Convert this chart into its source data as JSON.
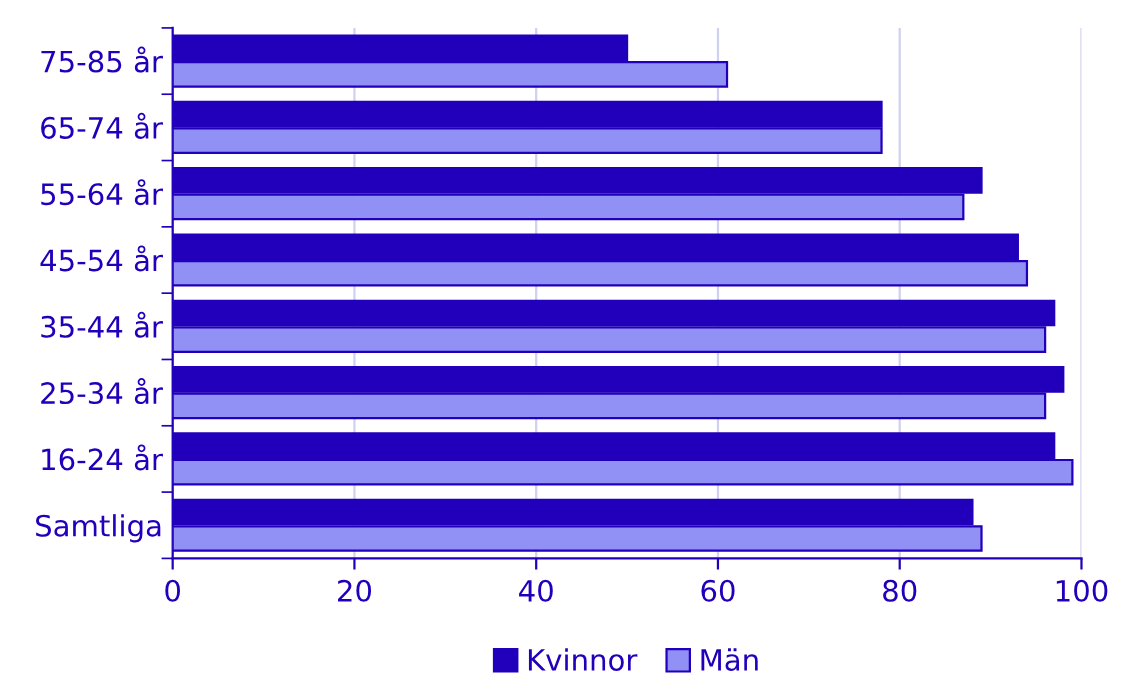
{
  "chart_data": {
    "type": "bar",
    "orientation": "horizontal",
    "categories": [
      "75-85 år",
      "65-74 år",
      "55-64 år",
      "45-54 år",
      "35-44 år",
      "25-34 år",
      "16-24 år",
      "Samtliga"
    ],
    "series": [
      {
        "name": "Kvinnor",
        "color": "#2200bb",
        "values": [
          50,
          78,
          89,
          93,
          97,
          98,
          97,
          88
        ]
      },
      {
        "name": "Män",
        "color": "#9090f5",
        "values": [
          61,
          78,
          87,
          94,
          96,
          96,
          99,
          89
        ]
      }
    ],
    "xlim": [
      0,
      100
    ],
    "xticks": [
      0,
      20,
      40,
      60,
      80,
      100
    ],
    "grid": "x",
    "legend": "bottom"
  }
}
